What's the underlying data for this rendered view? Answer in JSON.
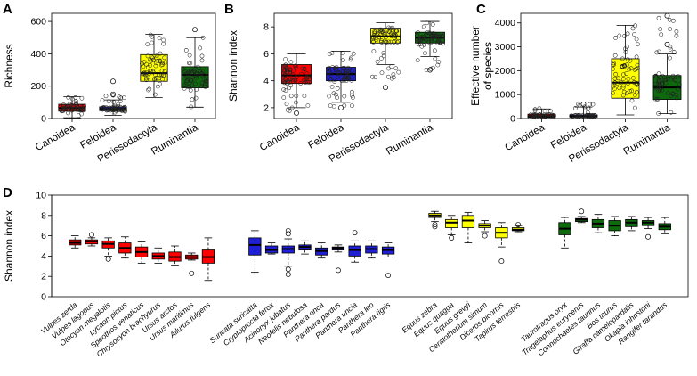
{
  "colors": {
    "Canoidea": "#ff0000",
    "Feloidea": "#1f1fd6",
    "Perissodactyla": "#ffff00",
    "Ruminantia": "#0d6b0d"
  },
  "chart_data": [
    {
      "panel": "A",
      "type": "boxplot",
      "ylabel": "Richness",
      "ylim": [
        0,
        650
      ],
      "yticks": [
        0,
        200,
        400,
        600
      ],
      "categories": [
        "Canoidea",
        "Feloidea",
        "Perissodactyla",
        "Ruminantia"
      ],
      "boxes": [
        {
          "name": "Canoidea",
          "lower_whisker": 5,
          "q1": 45,
          "median": 65,
          "q3": 88,
          "upper_whisker": 135,
          "outliers": [],
          "jitter_range": [
            5,
            135
          ]
        },
        {
          "name": "Feloidea",
          "lower_whisker": 20,
          "q1": 48,
          "median": 60,
          "q3": 72,
          "upper_whisker": 115,
          "outliers": [
            150,
            230
          ],
          "jitter_range": [
            20,
            160
          ]
        },
        {
          "name": "Perissodactyla",
          "lower_whisker": 130,
          "q1": 230,
          "median": 280,
          "q3": 395,
          "upper_whisker": 520,
          "outliers": [],
          "jitter_range": [
            130,
            520
          ]
        },
        {
          "name": "Ruminantia",
          "lower_whisker": 70,
          "q1": 190,
          "median": 270,
          "q3": 320,
          "upper_whisker": 500,
          "outliers": [
            550
          ],
          "jitter_range": [
            70,
            550
          ]
        }
      ]
    },
    {
      "panel": "B",
      "type": "boxplot",
      "ylabel": "Shannon index",
      "ylim": [
        1.2,
        9
      ],
      "yticks": [
        2,
        4,
        6,
        8
      ],
      "categories": [
        "Canoidea",
        "Feloidea",
        "Perissodactyla",
        "Ruminantia"
      ],
      "boxes": [
        {
          "name": "Canoidea",
          "lower_whisker": 2.0,
          "q1": 3.8,
          "median": 4.4,
          "q3": 5.2,
          "upper_whisker": 6.0,
          "outliers": [
            1.6
          ],
          "jitter_range": [
            1.6,
            6.0
          ]
        },
        {
          "name": "Feloidea",
          "lower_whisker": 2.4,
          "q1": 4.0,
          "median": 4.5,
          "q3": 5.0,
          "upper_whisker": 6.2,
          "outliers": [
            2.0
          ],
          "jitter_range": [
            2.0,
            6.2
          ]
        },
        {
          "name": "Perissodactyla",
          "lower_whisker": 5.2,
          "q1": 6.8,
          "median": 7.3,
          "q3": 7.9,
          "upper_whisker": 8.3,
          "outliers": [
            3.5
          ],
          "jitter_range": [
            3.5,
            8.3
          ]
        },
        {
          "name": "Ruminantia",
          "lower_whisker": 5.8,
          "q1": 6.8,
          "median": 7.2,
          "q3": 7.6,
          "upper_whisker": 8.4,
          "outliers": [
            4.8
          ],
          "jitter_range": [
            4.8,
            8.4
          ]
        }
      ]
    },
    {
      "panel": "C",
      "type": "boxplot",
      "ylabel": "Effective number\nof species",
      "ylim": [
        0,
        4400
      ],
      "yticks": [
        0,
        1000,
        2000,
        3000,
        4000
      ],
      "categories": [
        "Canoidea",
        "Feloidea",
        "Perissodactyla",
        "Ruminantia"
      ],
      "boxes": [
        {
          "name": "Canoidea",
          "lower_whisker": 5,
          "q1": 50,
          "median": 100,
          "q3": 180,
          "upper_whisker": 400,
          "outliers": [],
          "jitter_range": [
            5,
            420
          ]
        },
        {
          "name": "Feloidea",
          "lower_whisker": 10,
          "q1": 60,
          "median": 90,
          "q3": 150,
          "upper_whisker": 480,
          "outliers": [
            600
          ],
          "jitter_range": [
            10,
            600
          ]
        },
        {
          "name": "Perissodactyla",
          "lower_whisker": 150,
          "q1": 850,
          "median": 1500,
          "q3": 2500,
          "upper_whisker": 3900,
          "outliers": [],
          "jitter_range": [
            150,
            3900
          ]
        },
        {
          "name": "Ruminantia",
          "lower_whisker": 200,
          "q1": 800,
          "median": 1300,
          "q3": 1800,
          "upper_whisker": 2700,
          "outliers": [
            3100,
            4300
          ],
          "jitter_range": [
            150,
            4300
          ]
        }
      ]
    },
    {
      "panel": "D",
      "type": "boxplot",
      "ylabel": "Shannon index",
      "ylim": [
        0,
        10
      ],
      "yticks": [
        0,
        2,
        4,
        6,
        8,
        10
      ],
      "groups": [
        {
          "group": "Canoidea",
          "species": [
            {
              "name": "Vulpes zerda",
              "lower_whisker": 4.8,
              "q1": 5.1,
              "median": 5.3,
              "q3": 5.6,
              "upper_whisker": 6.0,
              "outliers": []
            },
            {
              "name": "Vulpes lagopus",
              "lower_whisker": 5.0,
              "q1": 5.2,
              "median": 5.45,
              "q3": 5.6,
              "upper_whisker": 5.8,
              "outliers": [
                6.1
              ]
            },
            {
              "name": "Otocyon megalotis",
              "lower_whisker": 4.0,
              "q1": 4.8,
              "median": 5.2,
              "q3": 5.5,
              "upper_whisker": 5.8,
              "outliers": [
                3.7
              ]
            },
            {
              "name": "Lycaon pictus",
              "lower_whisker": 3.8,
              "q1": 4.3,
              "median": 4.8,
              "q3": 5.3,
              "upper_whisker": 5.9,
              "outliers": []
            },
            {
              "name": "Speothos venaticus",
              "lower_whisker": 3.3,
              "q1": 3.9,
              "median": 4.4,
              "q3": 4.9,
              "upper_whisker": 5.4,
              "outliers": []
            },
            {
              "name": "Chrysocyon brachyurus",
              "lower_whisker": 3.3,
              "q1": 3.7,
              "median": 4.0,
              "q3": 4.3,
              "upper_whisker": 4.8,
              "outliers": []
            },
            {
              "name": "Ursus arctos",
              "lower_whisker": 3.1,
              "q1": 3.5,
              "median": 3.9,
              "q3": 4.4,
              "upper_whisker": 5.0,
              "outliers": []
            },
            {
              "name": "Ursus maritimus",
              "lower_whisker": 3.6,
              "q1": 3.7,
              "median": 3.9,
              "q3": 4.1,
              "upper_whisker": 4.3,
              "outliers": [
                2.3
              ]
            },
            {
              "name": "Ailurus fulgens",
              "lower_whisker": 1.6,
              "q1": 3.3,
              "median": 3.9,
              "q3": 4.6,
              "upper_whisker": 5.8,
              "outliers": []
            }
          ]
        },
        {
          "group": "Feloidea",
          "species": [
            {
              "name": "Suricata suricatta",
              "lower_whisker": 2.4,
              "q1": 4.1,
              "median": 5.1,
              "q3": 5.8,
              "upper_whisker": 6.5,
              "outliers": []
            },
            {
              "name": "Cryptoprocta ferox",
              "lower_whisker": 4.2,
              "q1": 4.3,
              "median": 4.6,
              "q3": 5.0,
              "upper_whisker": 5.3,
              "outliers": []
            },
            {
              "name": "Acinonyx jubatus",
              "lower_whisker": 3.0,
              "q1": 4.3,
              "median": 4.7,
              "q3": 5.0,
              "upper_whisker": 5.7,
              "outliers": [
                2.2,
                2.7,
                6.2,
                6.5
              ]
            },
            {
              "name": "Neofelis nebulosa",
              "lower_whisker": 4.2,
              "q1": 4.6,
              "median": 4.9,
              "q3": 5.1,
              "upper_whisker": 5.5,
              "outliers": []
            },
            {
              "name": "Panthera onca",
              "lower_whisker": 3.8,
              "q1": 4.1,
              "median": 4.5,
              "q3": 4.8,
              "upper_whisker": 5.3,
              "outliers": []
            },
            {
              "name": "Panthera pardus",
              "lower_whisker": 4.4,
              "q1": 4.6,
              "median": 4.8,
              "q3": 4.9,
              "upper_whisker": 5.1,
              "outliers": [
                2.6
              ]
            },
            {
              "name": "Panthera uncia",
              "lower_whisker": 3.4,
              "q1": 4.0,
              "median": 4.6,
              "q3": 5.0,
              "upper_whisker": 5.5,
              "outliers": [
                6.3
              ]
            },
            {
              "name": "Panthera leo",
              "lower_whisker": 3.8,
              "q1": 4.3,
              "median": 4.7,
              "q3": 5.0,
              "upper_whisker": 5.5,
              "outliers": []
            },
            {
              "name": "Panthera tigris",
              "lower_whisker": 3.9,
              "q1": 4.2,
              "median": 4.6,
              "q3": 4.9,
              "upper_whisker": 5.3,
              "outliers": [
                2.1
              ]
            }
          ]
        },
        {
          "group": "Perissodactyla",
          "species": [
            {
              "name": "Equus zebra",
              "lower_whisker": 7.4,
              "q1": 7.8,
              "median": 8.0,
              "q3": 8.2,
              "upper_whisker": 8.4,
              "outliers": [
                6.9,
                7.1
              ]
            },
            {
              "name": "Equus quagga",
              "lower_whisker": 6.1,
              "q1": 6.8,
              "median": 7.3,
              "q3": 7.6,
              "upper_whisker": 8.0,
              "outliers": [
                5.8
              ]
            },
            {
              "name": "Equus grevyi",
              "lower_whisker": 5.3,
              "q1": 6.8,
              "median": 7.5,
              "q3": 8.0,
              "upper_whisker": 8.3,
              "outliers": []
            },
            {
              "name": "Ceratotherium simum",
              "lower_whisker": 6.4,
              "q1": 6.8,
              "median": 7.0,
              "q3": 7.2,
              "upper_whisker": 7.5,
              "outliers": [
                6.0
              ]
            },
            {
              "name": "Diceros bicornis",
              "lower_whisker": 4.9,
              "q1": 5.8,
              "median": 6.3,
              "q3": 6.8,
              "upper_whisker": 7.3,
              "outliers": [
                3.5
              ]
            },
            {
              "name": "Tapirus terrestris",
              "lower_whisker": 6.4,
              "q1": 6.5,
              "median": 6.6,
              "q3": 6.8,
              "upper_whisker": 7.0,
              "outliers": [
                7.1
              ]
            }
          ]
        },
        {
          "group": "Ruminantia",
          "species": [
            {
              "name": "Taurotragus oryx",
              "lower_whisker": 4.8,
              "q1": 6.1,
              "median": 6.7,
              "q3": 7.3,
              "upper_whisker": 7.8,
              "outliers": []
            },
            {
              "name": "Tragelaphus eurycerus",
              "lower_whisker": 7.3,
              "q1": 7.4,
              "median": 7.6,
              "q3": 7.7,
              "upper_whisker": 7.9,
              "outliers": [
                8.4
              ]
            },
            {
              "name": "Connochaetes taurinus",
              "lower_whisker": 6.3,
              "q1": 6.8,
              "median": 7.2,
              "q3": 7.6,
              "upper_whisker": 8.1,
              "outliers": []
            },
            {
              "name": "Bos taurus",
              "lower_whisker": 6.0,
              "q1": 6.5,
              "median": 7.0,
              "q3": 7.5,
              "upper_whisker": 7.9,
              "outliers": []
            },
            {
              "name": "Giraffa camelopardalis",
              "lower_whisker": 6.5,
              "q1": 6.9,
              "median": 7.3,
              "q3": 7.6,
              "upper_whisker": 7.9,
              "outliers": []
            },
            {
              "name": "Okapia johnstoni",
              "lower_whisker": 6.7,
              "q1": 7.0,
              "median": 7.3,
              "q3": 7.5,
              "upper_whisker": 7.8,
              "outliers": [
                5.9
              ]
            },
            {
              "name": "Rangifer tarandus",
              "lower_whisker": 6.2,
              "q1": 6.6,
              "median": 6.9,
              "q3": 7.2,
              "upper_whisker": 7.8,
              "outliers": []
            }
          ]
        }
      ]
    }
  ]
}
